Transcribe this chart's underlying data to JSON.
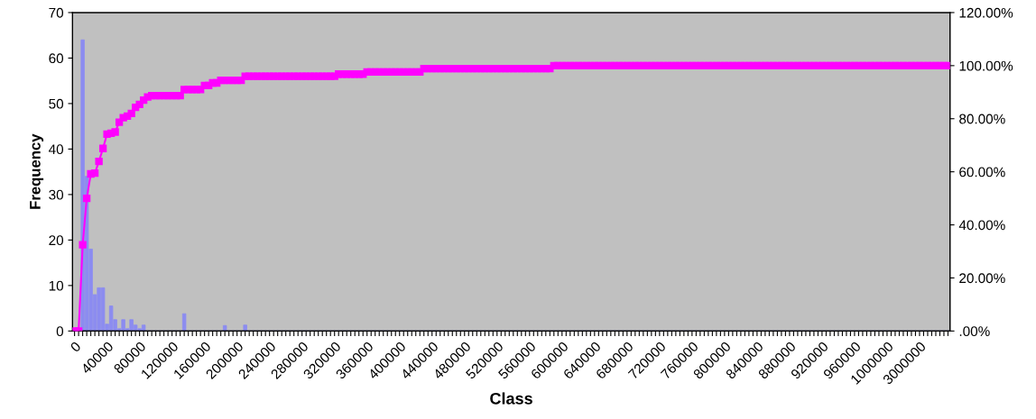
{
  "chart_data": {
    "type": "bar",
    "xlabel": "Class",
    "ylabel": "Frequency",
    "categories": [
      "0",
      null,
      null,
      null,
      null,
      null,
      null,
      null,
      "40000",
      null,
      null,
      null,
      null,
      null,
      null,
      null,
      "80000",
      null,
      null,
      null,
      null,
      null,
      null,
      null,
      "120000",
      null,
      null,
      null,
      null,
      null,
      null,
      null,
      "160000",
      null,
      null,
      null,
      null,
      null,
      null,
      null,
      "200000",
      null,
      null,
      null,
      null,
      null,
      null,
      null,
      "240000",
      null,
      null,
      null,
      null,
      null,
      null,
      null,
      "280000",
      null,
      null,
      null,
      null,
      null,
      null,
      null,
      "320000",
      null,
      null,
      null,
      null,
      null,
      null,
      null,
      "360000",
      null,
      null,
      null,
      null,
      null,
      null,
      null,
      "400000",
      null,
      null,
      null,
      null,
      null,
      null,
      null,
      "440000",
      null,
      null,
      null,
      null,
      null,
      null,
      null,
      "480000",
      null,
      null,
      null,
      null,
      null,
      null,
      null,
      "520000",
      null,
      null,
      null,
      null,
      null,
      null,
      null,
      "560000",
      null,
      null,
      null,
      null,
      null,
      null,
      null,
      "600000",
      null,
      null,
      null,
      null,
      null,
      null,
      null,
      "640000",
      null,
      null,
      null,
      null,
      null,
      null,
      null,
      "680000",
      null,
      null,
      null,
      null,
      null,
      null,
      null,
      "720000",
      null,
      null,
      null,
      null,
      null,
      null,
      null,
      "760000",
      null,
      null,
      null,
      null,
      null,
      null,
      null,
      "800000",
      null,
      null,
      null,
      null,
      null,
      null,
      null,
      "840000",
      null,
      null,
      null,
      null,
      null,
      null,
      null,
      "880000",
      null,
      null,
      null,
      null,
      null,
      null,
      null,
      "920000",
      null,
      null,
      null,
      null,
      null,
      null,
      null,
      "960000",
      null,
      null,
      null,
      null,
      null,
      null,
      null,
      "1000000",
      null,
      null,
      null,
      null,
      null,
      null,
      null,
      "3000000",
      null,
      null,
      null,
      null,
      null,
      null,
      null
    ],
    "series": [
      {
        "color": "#8c8cf0",
        "values": [
          0,
          0,
          64,
          34,
          18,
          8,
          9.5,
          9.5,
          1.5,
          5.5,
          2.5,
          0.5,
          2.5,
          0.5,
          2.5,
          1.3,
          0.5,
          1.3,
          0,
          0,
          0,
          0,
          0,
          0,
          0,
          0,
          0,
          3.8,
          0,
          0,
          0,
          0,
          0,
          0,
          0,
          0,
          0,
          1.2,
          0,
          0,
          0,
          0,
          1.3,
          0,
          0,
          0,
          0,
          0,
          0,
          0,
          0,
          0,
          0,
          0,
          0,
          0,
          0,
          0,
          0,
          0,
          0,
          0,
          0,
          0,
          0,
          0,
          0,
          0,
          0,
          0,
          0,
          0,
          0,
          0,
          0,
          0,
          0,
          0,
          0,
          0,
          0,
          0,
          0,
          0,
          0,
          0,
          0,
          0,
          0,
          0,
          0,
          0,
          0,
          0,
          0,
          0,
          0,
          0,
          0,
          0,
          0,
          0,
          0,
          0,
          0,
          0,
          0,
          0,
          0,
          0,
          0,
          0,
          0,
          0,
          0,
          0,
          0,
          0,
          0,
          0,
          0,
          0,
          0,
          0,
          0,
          0,
          0,
          0,
          0,
          0,
          0,
          0,
          0,
          0,
          0,
          0,
          0,
          0,
          0,
          0,
          0,
          0,
          0,
          0,
          0,
          0,
          0,
          0,
          0,
          0,
          0,
          0,
          0,
          0,
          0,
          0,
          0,
          0,
          0,
          0,
          0,
          0,
          0,
          0,
          0,
          0,
          0,
          0,
          0,
          0,
          0,
          0,
          0,
          0,
          0,
          0,
          0,
          0,
          0,
          0,
          0,
          0,
          0,
          0,
          0,
          0,
          0,
          0,
          0,
          0,
          0,
          0,
          0,
          0,
          0,
          0,
          0,
          0,
          0,
          0,
          0,
          0,
          0,
          0,
          0,
          0,
          0,
          0,
          0,
          0,
          0,
          0,
          0,
          0,
          0,
          0
        ]
      },
      {
        "type": "line",
        "axis": "y2",
        "color": "#ff00ff",
        "marker": "square",
        "values": [
          0,
          0,
          32.5,
          50,
          59.2,
          59.5,
          63.9,
          68.8,
          74.2,
          74.5,
          75,
          78.7,
          80.4,
          81,
          82,
          84.3,
          85.4,
          87,
          88.2,
          88.7,
          88.7,
          88.7,
          88.7,
          88.7,
          88.7,
          88.7,
          88.7,
          91,
          91,
          91,
          91,
          91,
          92.5,
          92.5,
          93.5,
          93.5,
          94.5,
          94.5,
          94.5,
          94.5,
          94.5,
          94.5,
          96,
          96,
          96,
          96,
          96,
          96,
          96,
          96,
          96,
          96,
          96,
          96,
          96,
          96,
          96,
          96,
          96,
          96,
          96,
          96,
          96,
          96,
          96,
          96.8,
          96.8,
          96.8,
          96.8,
          96.8,
          96.8,
          96.8,
          97.6,
          97.6,
          97.6,
          97.6,
          97.6,
          97.6,
          97.6,
          97.6,
          97.6,
          97.6,
          97.6,
          97.6,
          97.6,
          97.6,
          98.9,
          98.9,
          98.9,
          98.9,
          98.9,
          98.9,
          98.9,
          98.9,
          98.9,
          98.9,
          98.9,
          98.9,
          98.9,
          98.9,
          98.9,
          98.9,
          98.9,
          98.9,
          98.9,
          98.9,
          98.9,
          98.9,
          98.9,
          98.9,
          98.9,
          98.9,
          98.9,
          98.9,
          98.9,
          98.9,
          98.9,
          98.9,
          100,
          100,
          100,
          100,
          100,
          100,
          100,
          100,
          100,
          100,
          100,
          100,
          100,
          100,
          100,
          100,
          100,
          100,
          100,
          100,
          100,
          100,
          100,
          100,
          100,
          100,
          100,
          100,
          100,
          100,
          100,
          100,
          100,
          100,
          100,
          100,
          100,
          100,
          100,
          100,
          100,
          100,
          100,
          100,
          100,
          100,
          100,
          100,
          100,
          100,
          100,
          100,
          100,
          100,
          100,
          100,
          100,
          100,
          100,
          100,
          100,
          100,
          100,
          100,
          100,
          100,
          100,
          100,
          100,
          100,
          100,
          100,
          100,
          100,
          100,
          100,
          100,
          100,
          100,
          100,
          100,
          100,
          100,
          100,
          100,
          100,
          100,
          100,
          100,
          100,
          100,
          100,
          100,
          100,
          100,
          100,
          100,
          100
        ]
      }
    ],
    "ylim": [
      0,
      70
    ],
    "yticks": [
      0,
      10,
      20,
      30,
      40,
      50,
      60,
      70
    ],
    "y2lim": [
      0,
      120
    ],
    "y2ticks": [
      {
        "value": 0,
        "label": ".00%"
      },
      {
        "value": 20,
        "label": "20.00%"
      },
      {
        "value": 40,
        "label": "40.00%"
      },
      {
        "value": 60,
        "label": "60.00%"
      },
      {
        "value": 80,
        "label": "80.00%"
      },
      {
        "value": 100,
        "label": "100.00%"
      },
      {
        "value": 120,
        "label": "120.00%"
      }
    ],
    "grid": false
  }
}
